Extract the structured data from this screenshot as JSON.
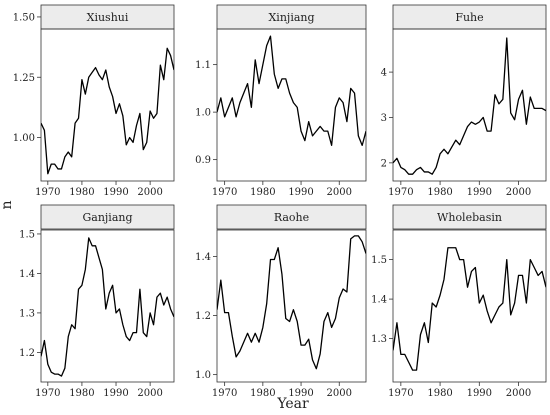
{
  "figure": {
    "xlabel": "Year",
    "ylabel": "n"
  },
  "chart_data": [
    {
      "type": "line",
      "title": "Xiushui",
      "xlim": [
        1968,
        2007
      ],
      "ylim": [
        0.82,
        1.45
      ],
      "xticks": [
        1970,
        1980,
        1990,
        2000
      ],
      "yticks": [
        1.0,
        1.25,
        1.5
      ],
      "ytick_labels": [
        "1.00",
        "1.25",
        "1.50"
      ],
      "x": [
        1968,
        1969,
        1970,
        1971,
        1972,
        1973,
        1974,
        1975,
        1976,
        1977,
        1978,
        1979,
        1980,
        1981,
        1982,
        1983,
        1984,
        1985,
        1986,
        1987,
        1988,
        1989,
        1990,
        1991,
        1992,
        1993,
        1994,
        1995,
        1996,
        1997,
        1998,
        1999,
        2000,
        2001,
        2002,
        2003,
        2004,
        2005,
        2006,
        2007
      ],
      "values": [
        1.06,
        1.03,
        0.85,
        0.89,
        0.89,
        0.87,
        0.87,
        0.92,
        0.94,
        0.92,
        1.06,
        1.08,
        1.24,
        1.18,
        1.25,
        1.27,
        1.29,
        1.26,
        1.24,
        1.28,
        1.21,
        1.17,
        1.1,
        1.14,
        1.09,
        0.97,
        1.0,
        0.98,
        1.05,
        1.1,
        0.95,
        0.98,
        1.11,
        1.08,
        1.1,
        1.3,
        1.24,
        1.37,
        1.34,
        1.28
      ]
    },
    {
      "type": "line",
      "title": "Xinjiang",
      "xlim": [
        1968,
        2007
      ],
      "ylim": [
        0.855,
        1.175
      ],
      "xticks": [
        1970,
        1980,
        1990,
        2000
      ],
      "yticks": [
        0.9,
        1.0,
        1.1
      ],
      "ytick_labels": [
        "0.9",
        "1.0",
        "1.1"
      ],
      "x": [
        1968,
        1969,
        1970,
        1971,
        1972,
        1973,
        1974,
        1975,
        1976,
        1977,
        1978,
        1979,
        1980,
        1981,
        1982,
        1983,
        1984,
        1985,
        1986,
        1987,
        1988,
        1989,
        1990,
        1991,
        1992,
        1993,
        1994,
        1995,
        1996,
        1997,
        1998,
        1999,
        2000,
        2001,
        2002,
        2003,
        2004,
        2005,
        2006,
        2007
      ],
      "values": [
        1.0,
        1.03,
        0.99,
        1.01,
        1.03,
        0.99,
        1.02,
        1.04,
        1.06,
        1.01,
        1.11,
        1.06,
        1.1,
        1.14,
        1.16,
        1.08,
        1.05,
        1.07,
        1.07,
        1.04,
        1.02,
        1.01,
        0.96,
        0.94,
        0.98,
        0.95,
        0.96,
        0.97,
        0.96,
        0.96,
        0.93,
        1.01,
        1.03,
        1.02,
        0.98,
        1.05,
        1.04,
        0.95,
        0.93,
        0.96
      ]
    },
    {
      "type": "line",
      "title": "Fuhe",
      "xlim": [
        1968,
        2007
      ],
      "ylim": [
        1.6,
        4.95
      ],
      "xticks": [
        1970,
        1980,
        1990,
        2000
      ],
      "yticks": [
        2,
        3,
        4
      ],
      "ytick_labels": [
        "2",
        "3",
        "4"
      ],
      "x": [
        1968,
        1969,
        1970,
        1971,
        1972,
        1973,
        1974,
        1975,
        1976,
        1977,
        1978,
        1979,
        1980,
        1981,
        1982,
        1983,
        1984,
        1985,
        1986,
        1987,
        1988,
        1989,
        1990,
        1991,
        1992,
        1993,
        1994,
        1995,
        1996,
        1997,
        1998,
        1999,
        2000,
        2001,
        2002,
        2003,
        2004,
        2005,
        2006,
        2007
      ],
      "values": [
        2.0,
        2.1,
        1.9,
        1.85,
        1.75,
        1.75,
        1.85,
        1.9,
        1.8,
        1.8,
        1.75,
        1.9,
        2.2,
        2.3,
        2.2,
        2.35,
        2.5,
        2.4,
        2.6,
        2.8,
        2.9,
        2.85,
        2.9,
        3.0,
        2.7,
        2.7,
        3.5,
        3.3,
        3.4,
        4.75,
        3.1,
        2.95,
        3.4,
        3.6,
        2.85,
        3.45,
        3.2,
        3.2,
        3.2,
        3.15
      ]
    },
    {
      "type": "line",
      "title": "Ganjiang",
      "xlim": [
        1968,
        2007
      ],
      "ylim": [
        1.125,
        1.51
      ],
      "xticks": [
        1970,
        1980,
        1990,
        2000
      ],
      "yticks": [
        1.2,
        1.3,
        1.4,
        1.5
      ],
      "ytick_labels": [
        "1.2",
        "1.3",
        "1.4",
        "1.5"
      ],
      "x": [
        1968,
        1969,
        1970,
        1971,
        1972,
        1973,
        1974,
        1975,
        1976,
        1977,
        1978,
        1979,
        1980,
        1981,
        1982,
        1983,
        1984,
        1985,
        1986,
        1987,
        1988,
        1989,
        1990,
        1991,
        1992,
        1993,
        1994,
        1995,
        1996,
        1997,
        1998,
        1999,
        2000,
        2001,
        2002,
        2003,
        2004,
        2005,
        2006,
        2007
      ],
      "values": [
        1.19,
        1.23,
        1.17,
        1.15,
        1.145,
        1.145,
        1.14,
        1.16,
        1.24,
        1.27,
        1.26,
        1.36,
        1.37,
        1.41,
        1.49,
        1.47,
        1.47,
        1.44,
        1.41,
        1.31,
        1.35,
        1.37,
        1.3,
        1.31,
        1.27,
        1.24,
        1.23,
        1.25,
        1.25,
        1.36,
        1.25,
        1.24,
        1.3,
        1.27,
        1.34,
        1.35,
        1.32,
        1.34,
        1.31,
        1.29
      ]
    },
    {
      "type": "line",
      "title": "Raohe",
      "xlim": [
        1968,
        2007
      ],
      "ylim": [
        0.975,
        1.49
      ],
      "xticks": [
        1970,
        1980,
        1990,
        2000
      ],
      "yticks": [
        1.0,
        1.2,
        1.4
      ],
      "ytick_labels": [
        "1.0",
        "1.2",
        "1.4"
      ],
      "x": [
        1968,
        1969,
        1970,
        1971,
        1972,
        1973,
        1974,
        1975,
        1976,
        1977,
        1978,
        1979,
        1980,
        1981,
        1982,
        1983,
        1984,
        1985,
        1986,
        1987,
        1988,
        1989,
        1990,
        1991,
        1992,
        1993,
        1994,
        1995,
        1996,
        1997,
        1998,
        1999,
        2000,
        2001,
        2002,
        2003,
        2004,
        2005,
        2006,
        2007
      ],
      "values": [
        1.22,
        1.32,
        1.21,
        1.21,
        1.13,
        1.06,
        1.08,
        1.11,
        1.14,
        1.11,
        1.14,
        1.11,
        1.16,
        1.24,
        1.39,
        1.39,
        1.43,
        1.34,
        1.19,
        1.18,
        1.22,
        1.18,
        1.1,
        1.1,
        1.12,
        1.05,
        1.02,
        1.07,
        1.18,
        1.21,
        1.16,
        1.19,
        1.26,
        1.29,
        1.28,
        1.46,
        1.47,
        1.47,
        1.45,
        1.41
      ]
    },
    {
      "type": "line",
      "title": "Wholebasin",
      "xlim": [
        1968,
        2007
      ],
      "ylim": [
        1.19,
        1.575
      ],
      "xticks": [
        1970,
        1980,
        1990,
        2000
      ],
      "yticks": [
        1.3,
        1.4,
        1.5
      ],
      "ytick_labels": [
        "1.3",
        "1.4",
        "1.5"
      ],
      "x": [
        1968,
        1969,
        1970,
        1971,
        1972,
        1973,
        1974,
        1975,
        1976,
        1977,
        1978,
        1979,
        1980,
        1981,
        1982,
        1983,
        1984,
        1985,
        1986,
        1987,
        1988,
        1989,
        1990,
        1991,
        1992,
        1993,
        1994,
        1995,
        1996,
        1997,
        1998,
        1999,
        2000,
        2001,
        2002,
        2003,
        2004,
        2005,
        2006,
        2007
      ],
      "values": [
        1.27,
        1.34,
        1.26,
        1.26,
        1.24,
        1.22,
        1.22,
        1.31,
        1.34,
        1.29,
        1.39,
        1.38,
        1.41,
        1.45,
        1.53,
        1.53,
        1.53,
        1.5,
        1.5,
        1.43,
        1.47,
        1.48,
        1.39,
        1.41,
        1.37,
        1.34,
        1.36,
        1.38,
        1.39,
        1.5,
        1.36,
        1.39,
        1.46,
        1.46,
        1.39,
        1.5,
        1.48,
        1.46,
        1.47,
        1.43
      ]
    }
  ]
}
